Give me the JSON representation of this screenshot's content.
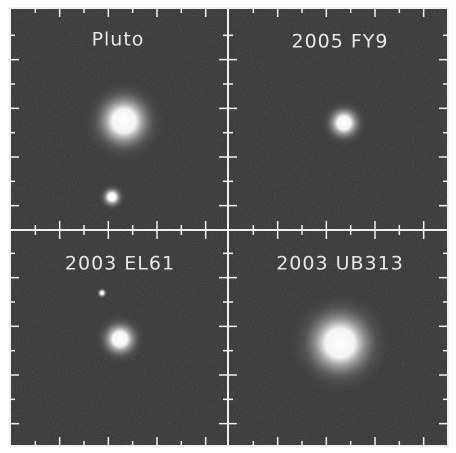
{
  "panels": [
    {
      "label": "Pluto"
    },
    {
      "label": "2005 FY9"
    },
    {
      "label": "2003 EL61"
    },
    {
      "label": "2003 UB313"
    }
  ]
}
